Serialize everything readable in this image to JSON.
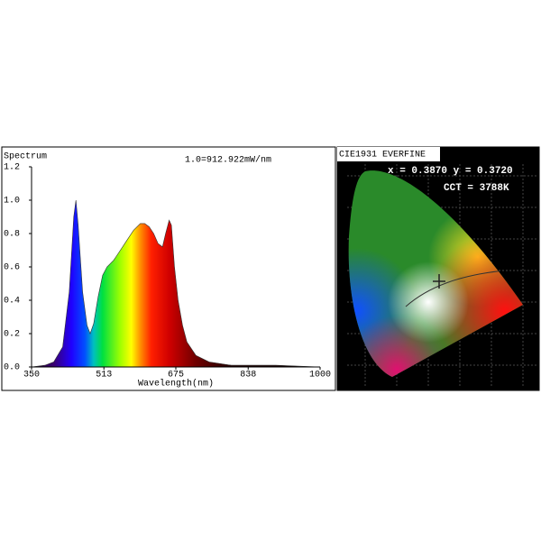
{
  "chart_data": [
    {
      "type": "area",
      "title": "Spectrum",
      "annotation": "1.0=912.922mW/nm",
      "x_label": "Wavelength(nm)",
      "x": [
        350,
        380,
        400,
        420,
        435,
        445,
        450,
        455,
        465,
        475,
        482,
        490,
        500,
        510,
        520,
        535,
        550,
        565,
        580,
        595,
        605,
        615,
        625,
        635,
        645,
        652,
        660,
        665,
        672,
        680,
        690,
        700,
        720,
        750,
        800,
        900,
        1000
      ],
      "values": [
        0,
        0.01,
        0.03,
        0.12,
        0.45,
        0.9,
        1.0,
        0.85,
        0.45,
        0.25,
        0.2,
        0.26,
        0.42,
        0.55,
        0.6,
        0.64,
        0.7,
        0.76,
        0.82,
        0.86,
        0.86,
        0.84,
        0.8,
        0.74,
        0.72,
        0.8,
        0.88,
        0.85,
        0.6,
        0.4,
        0.25,
        0.15,
        0.07,
        0.03,
        0.01,
        0.01,
        0
      ],
      "xlim": [
        350,
        1000
      ],
      "xticks": [
        350,
        513,
        675,
        838,
        1000
      ],
      "ylim": [
        0,
        1.2
      ],
      "yticks": [
        {
          "value": 0,
          "label": "0.0"
        },
        {
          "value": 0.2,
          "label": "0.2"
        },
        {
          "value": 0.4,
          "label": "0.4"
        },
        {
          "value": 0.6,
          "label": "0.6"
        },
        {
          "value": 0.8,
          "label": "0.8"
        },
        {
          "value": 1,
          "label": "1.0"
        },
        {
          "value": 1.2,
          "label": "1.2"
        }
      ]
    },
    {
      "type": "cie",
      "title": "CIE1931 EVERFINE",
      "annotations": [
        "x = 0.3870 y = 0.3720",
        "CCT = 3788K"
      ]
    }
  ]
}
